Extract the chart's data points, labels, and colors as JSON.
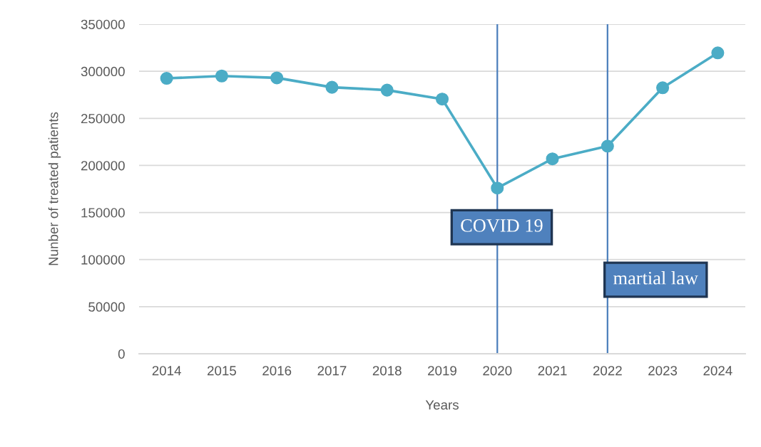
{
  "chart_data": {
    "type": "line",
    "categories": [
      "2014",
      "2015",
      "2016",
      "2017",
      "2018",
      "2019",
      "2020",
      "2021",
      "2022",
      "2023",
      "2024"
    ],
    "series": [
      {
        "color": "#4bacc6",
        "values": [
          292500,
          295000,
          293000,
          283000,
          280000,
          270500,
          176000,
          207000,
          220500,
          282500,
          319500
        ]
      }
    ],
    "xlabel": "Years",
    "ylabel": "Nunber of treated patients",
    "ylim": [
      0,
      350000
    ],
    "yticks": [
      0,
      50000,
      100000,
      150000,
      200000,
      250000,
      300000,
      350000
    ],
    "grid": "y",
    "marker": "circle",
    "line_style": "solid",
    "ref_lines": [
      {
        "axis": "x",
        "value": "2020",
        "label": "COVID 19",
        "color": "#4a7ebb"
      },
      {
        "axis": "x",
        "value": "2022",
        "label": "martial law",
        "color": "#4a7ebb"
      }
    ]
  }
}
